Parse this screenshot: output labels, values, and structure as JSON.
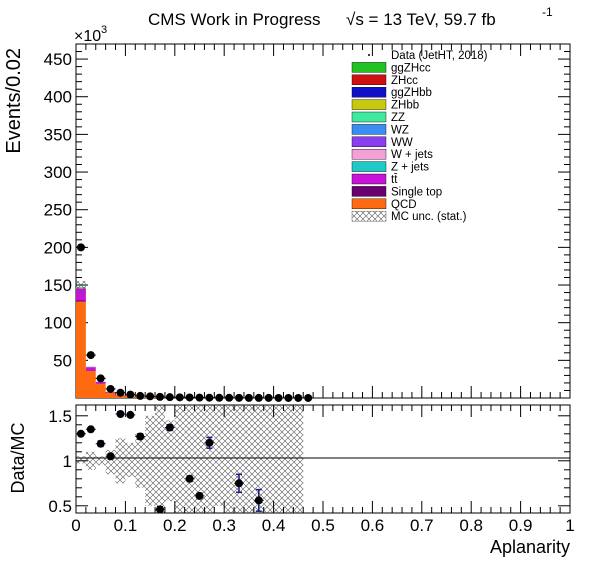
{
  "header": {
    "title": "CMS Work in Progress",
    "energy_label": "√s = 13 TeV, 59.7 fb",
    "energy_exponent": "-1"
  },
  "colors": {
    "ggZHcc": "#22c222",
    "ZHcc": "#d01010",
    "ggZHbb": "#1010c8",
    "ZHbb": "#c8c810",
    "ZZ": "#40e8a0",
    "WZ": "#3a8ef2",
    "WW": "#8a3ef0",
    "W + jets": "#f4a0d8",
    "Z + jets": "#20c8c8",
    "tt": "#c814d8",
    "Single top": "#6a0070",
    "QCD": "#ff6a10",
    "data": "#000000",
    "errorbar": "#1a1a8a"
  },
  "chart_data": [
    {
      "type": "bar",
      "subtype": "stacked-histogram",
      "ylabel": "Events/0.02",
      "y_multiplier": "×10",
      "y_multiplier_exp": "3",
      "ylim": [
        0,
        470
      ],
      "xlim": [
        0,
        1
      ],
      "bin_width": 0.02,
      "y_ticks": [
        50,
        100,
        150,
        200,
        250,
        300,
        350,
        400,
        450
      ],
      "legend_position": "top-right",
      "legend": [
        {
          "label": "Data (JetHT, 2018)",
          "kind": "marker"
        },
        {
          "label": "ggZHcc",
          "kind": "fill"
        },
        {
          "label": "ZHcc",
          "kind": "fill"
        },
        {
          "label": "ggZHbb",
          "kind": "fill"
        },
        {
          "label": "ZHbb",
          "kind": "fill"
        },
        {
          "label": "ZZ",
          "kind": "fill"
        },
        {
          "label": "WZ",
          "kind": "fill"
        },
        {
          "label": "WW",
          "kind": "fill"
        },
        {
          "label": "W + jets",
          "kind": "fill"
        },
        {
          "label": "Z + jets",
          "kind": "fill"
        },
        {
          "label": "tt̄",
          "kind": "fill",
          "color_key": "tt"
        },
        {
          "label": "Single top",
          "kind": "fill"
        },
        {
          "label": "QCD",
          "kind": "fill"
        },
        {
          "label": "MC unc. (stat.)",
          "kind": "hatch"
        }
      ],
      "series": [
        {
          "name": "QCD",
          "values": [
            128,
            36,
            19,
            7,
            3.5,
            2,
            1.2,
            0.8,
            0.5,
            0.4,
            0.3,
            0.25,
            0.2,
            0.15,
            0.12,
            0.1,
            0.1,
            0.08,
            0.07,
            0.06,
            0.05,
            0.05,
            0.04,
            0.04
          ]
        },
        {
          "name": "Single top",
          "values": [
            1.5,
            0.5,
            0.3,
            0.1,
            0.05,
            0.03,
            0.02,
            0.01,
            0,
            0,
            0,
            0,
            0,
            0,
            0,
            0,
            0,
            0,
            0,
            0,
            0,
            0,
            0,
            0
          ]
        },
        {
          "name": "tt",
          "values": [
            16,
            4.5,
            2,
            0.8,
            0.4,
            0.2,
            0.1,
            0.08,
            0.05,
            0.04,
            0.03,
            0.02,
            0.02,
            0.01,
            0.01,
            0.01,
            0,
            0,
            0,
            0,
            0,
            0,
            0,
            0
          ]
        },
        {
          "name": "W + jets",
          "values": [
            1,
            0.3,
            0.2,
            0.1,
            0.05,
            0.03,
            0.02,
            0.01,
            0,
            0,
            0,
            0,
            0,
            0,
            0,
            0,
            0,
            0,
            0,
            0,
            0,
            0,
            0,
            0
          ]
        },
        {
          "name": "Z + jets",
          "values": [
            1,
            0.3,
            0.2,
            0.1,
            0.05,
            0.03,
            0.02,
            0.01,
            0,
            0,
            0,
            0,
            0,
            0,
            0,
            0,
            0,
            0,
            0,
            0,
            0,
            0,
            0,
            0
          ]
        }
      ],
      "data_points": {
        "x": [
          0.01,
          0.03,
          0.05,
          0.07,
          0.09,
          0.11,
          0.13,
          0.15,
          0.17,
          0.19,
          0.21,
          0.23,
          0.25,
          0.27,
          0.29,
          0.31,
          0.33,
          0.35,
          0.37,
          0.39,
          0.41,
          0.43,
          0.45,
          0.47
        ],
        "y": [
          200,
          57,
          26,
          12,
          7,
          4.5,
          2.8,
          2.2,
          1.5,
          1.1,
          0.9,
          0.7,
          0.5,
          0.4,
          0.3,
          0.25,
          0.2,
          0.15,
          0.12,
          0.1,
          0.08,
          0.06,
          0.05,
          0.04
        ]
      }
    },
    {
      "type": "scatter",
      "subtype": "ratio",
      "ylabel": "Data/MC",
      "xlabel": "Aplanarity",
      "ylim": [
        0.42,
        1.62
      ],
      "xlim": [
        0,
        1
      ],
      "y_ticks": [
        0.5,
        1,
        1.5
      ],
      "y_tick_labels": [
        "0.5",
        "1",
        "1.5"
      ],
      "x_ticks": [
        0,
        0.1,
        0.2,
        0.3,
        0.4,
        0.5,
        0.6,
        0.7,
        0.8,
        0.9,
        1
      ],
      "x_tick_labels": [
        "0",
        "0.1",
        "0.2",
        "0.3",
        "0.4",
        "0.5",
        "0.6",
        "0.7",
        "0.8",
        "0.9",
        "1"
      ],
      "reference_line": 1,
      "points": [
        {
          "x": 0.01,
          "y": 1.3,
          "err": 0.02
        },
        {
          "x": 0.03,
          "y": 1.35,
          "err": 0.02
        },
        {
          "x": 0.05,
          "y": 1.19,
          "err": 0.03
        },
        {
          "x": 0.07,
          "y": 1.05,
          "err": 0.03
        },
        {
          "x": 0.09,
          "y": 1.52,
          "err": 0.02
        },
        {
          "x": 0.11,
          "y": 1.51,
          "err": 0.02
        },
        {
          "x": 0.13,
          "y": 1.27,
          "err": 0.03
        },
        {
          "x": 0.17,
          "y": 0.46,
          "err": 0.03
        },
        {
          "x": 0.19,
          "y": 1.37,
          "err": 0.03
        },
        {
          "x": 0.23,
          "y": 0.8,
          "err": 0.03
        },
        {
          "x": 0.25,
          "y": 0.61,
          "err": 0.03
        },
        {
          "x": 0.27,
          "y": 1.2,
          "err": 0.06
        },
        {
          "x": 0.33,
          "y": 0.75,
          "err": 0.1
        },
        {
          "x": 0.37,
          "y": 0.56,
          "err": 0.12
        }
      ],
      "band": [
        [
          0.0,
          0.02,
          0.97,
          1.05
        ],
        [
          0.02,
          0.04,
          0.9,
          1.1
        ],
        [
          0.04,
          0.06,
          0.95,
          1.05
        ],
        [
          0.06,
          0.08,
          0.85,
          1.12
        ],
        [
          0.08,
          0.1,
          0.75,
          1.25
        ],
        [
          0.1,
          0.12,
          0.82,
          1.2
        ],
        [
          0.12,
          0.14,
          0.7,
          1.3
        ],
        [
          0.14,
          0.16,
          0.5,
          1.5
        ],
        [
          0.16,
          0.18,
          0.42,
          1.62
        ],
        [
          0.18,
          0.2,
          0.55,
          1.45
        ],
        [
          0.2,
          0.22,
          0.42,
          1.62
        ],
        [
          0.22,
          0.24,
          0.42,
          1.62
        ],
        [
          0.24,
          0.26,
          0.42,
          1.62
        ],
        [
          0.26,
          0.28,
          0.42,
          1.62
        ],
        [
          0.28,
          0.3,
          0.5,
          1.62
        ],
        [
          0.3,
          0.32,
          0.42,
          1.62
        ],
        [
          0.32,
          0.34,
          0.42,
          1.62
        ],
        [
          0.34,
          0.36,
          0.42,
          1.62
        ],
        [
          0.36,
          0.38,
          0.42,
          1.62
        ],
        [
          0.38,
          0.4,
          0.42,
          1.62
        ],
        [
          0.4,
          0.42,
          0.42,
          1.62
        ],
        [
          0.42,
          0.44,
          0.42,
          1.62
        ],
        [
          0.44,
          0.46,
          0.42,
          1.62
        ]
      ]
    }
  ]
}
